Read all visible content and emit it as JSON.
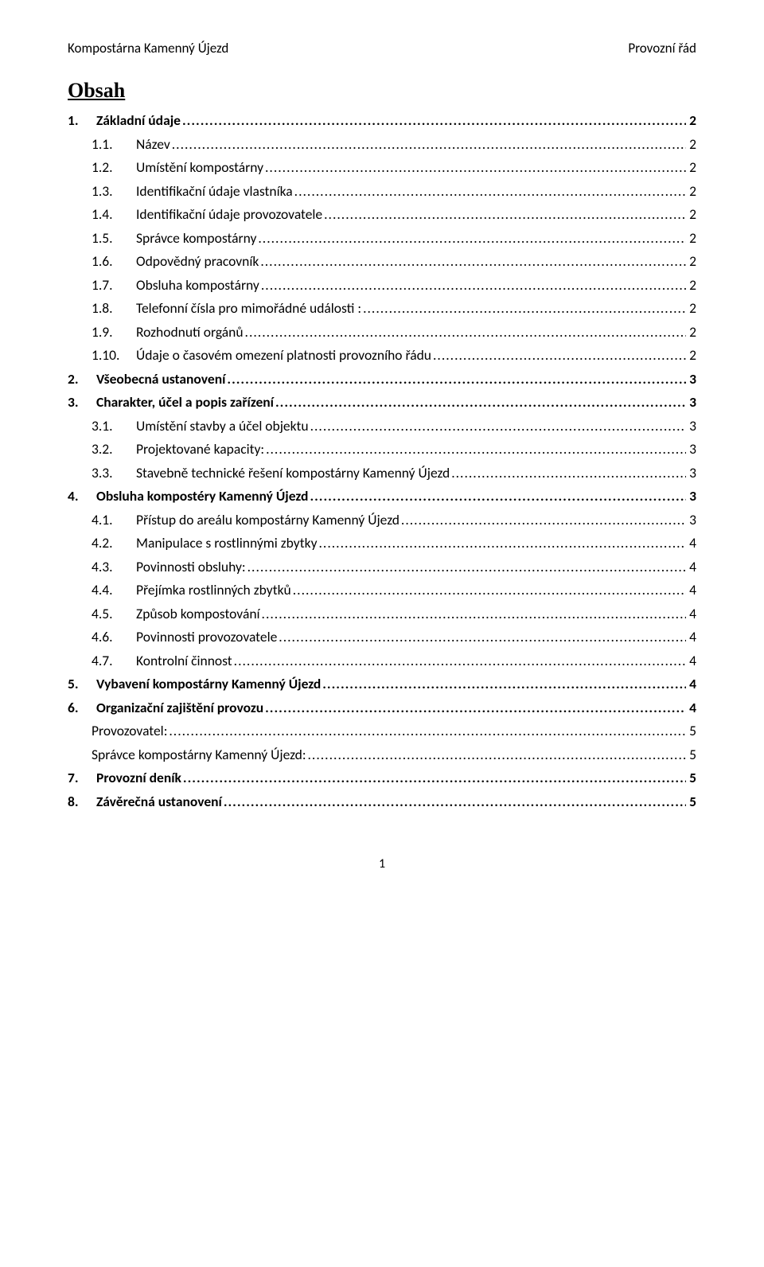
{
  "header": {
    "left": "Kompostárna Kamenný Újezd",
    "right": "Provozní řád"
  },
  "title": "Obsah",
  "toc": [
    {
      "level": 1,
      "num": "1.",
      "label": "Základní údaje",
      "page": "2"
    },
    {
      "level": 2,
      "num": "1.1.",
      "label": "Název",
      "page": "2"
    },
    {
      "level": 2,
      "num": "1.2.",
      "label": "Umístění kompostárny",
      "page": "2"
    },
    {
      "level": 2,
      "num": "1.3.",
      "label": "Identifikační údaje vlastníka",
      "page": "2"
    },
    {
      "level": 2,
      "num": "1.4.",
      "label": "Identifikační údaje provozovatele",
      "page": "2"
    },
    {
      "level": 2,
      "num": "1.5.",
      "label": "Správce kompostárny",
      "page": "2"
    },
    {
      "level": 2,
      "num": "1.6.",
      "label": "Odpovědný pracovník",
      "page": "2"
    },
    {
      "level": 2,
      "num": "1.7.",
      "label": "Obsluha kompostárny",
      "page": "2"
    },
    {
      "level": 2,
      "num": "1.8.",
      "label": "Telefonní čísla pro mimořádné události :",
      "page": "2"
    },
    {
      "level": 2,
      "num": "1.9.",
      "label": "Rozhodnutí orgánů",
      "page": "2"
    },
    {
      "level": 2,
      "num": "1.10.",
      "label": "Údaje o časovém omezení platnosti provozního řádu",
      "page": "2"
    },
    {
      "level": 1,
      "num": "2.",
      "label": "Všeobecná ustanovení",
      "page": "3"
    },
    {
      "level": 1,
      "num": "3.",
      "label": "Charakter, účel a popis zařízení",
      "page": "3"
    },
    {
      "level": 2,
      "num": "3.1.",
      "label": "Umístění stavby a účel objektu",
      "page": "3"
    },
    {
      "level": 2,
      "num": "3.2.",
      "label": "Projektované kapacity:",
      "page": "3"
    },
    {
      "level": 2,
      "num": "3.3.",
      "label": "Stavebně technické řešení kompostárny Kamenný Újezd",
      "page": "3"
    },
    {
      "level": 1,
      "num": "4.",
      "label": "Obsluha kompostéry Kamenný Újezd",
      "page": "3"
    },
    {
      "level": 2,
      "num": "4.1.",
      "label": "Přístup do areálu kompostárny Kamenný Újezd",
      "page": "3"
    },
    {
      "level": 2,
      "num": "4.2.",
      "label": "Manipulace s rostlinnými zbytky",
      "page": "4"
    },
    {
      "level": 2,
      "num": "4.3.",
      "label": "Povinnosti obsluhy:",
      "page": "4"
    },
    {
      "level": 2,
      "num": "4.4.",
      "label": "Přejímka rostlinných zbytků",
      "page": "4"
    },
    {
      "level": 2,
      "num": "4.5.",
      "label": "Způsob kompostování",
      "page": "4"
    },
    {
      "level": 2,
      "num": "4.6.",
      "label": "Povinnosti provozovatele",
      "page": "4"
    },
    {
      "level": 2,
      "num": "4.7.",
      "label": "Kontrolní činnost",
      "page": "4"
    },
    {
      "level": 1,
      "num": "5.",
      "label": "Vybavení kompostárny Kamenný Újezd",
      "page": "4"
    },
    {
      "level": 1,
      "num": "6.",
      "label": "Organizační zajištění provozu",
      "page": "4"
    },
    {
      "level": 0,
      "num": "",
      "label": "Provozovatel:      ",
      "page": "5"
    },
    {
      "level": 0,
      "num": "",
      "label": "Správce kompostárny Kamenný Újezd:      ",
      "page": "5"
    },
    {
      "level": 1,
      "num": "7.",
      "label": "Provozní deník",
      "page": "5"
    },
    {
      "level": 1,
      "num": "8.",
      "label": "Závěrečná ustanovení",
      "page": "5"
    }
  ],
  "footer": {
    "page_number": "1"
  }
}
